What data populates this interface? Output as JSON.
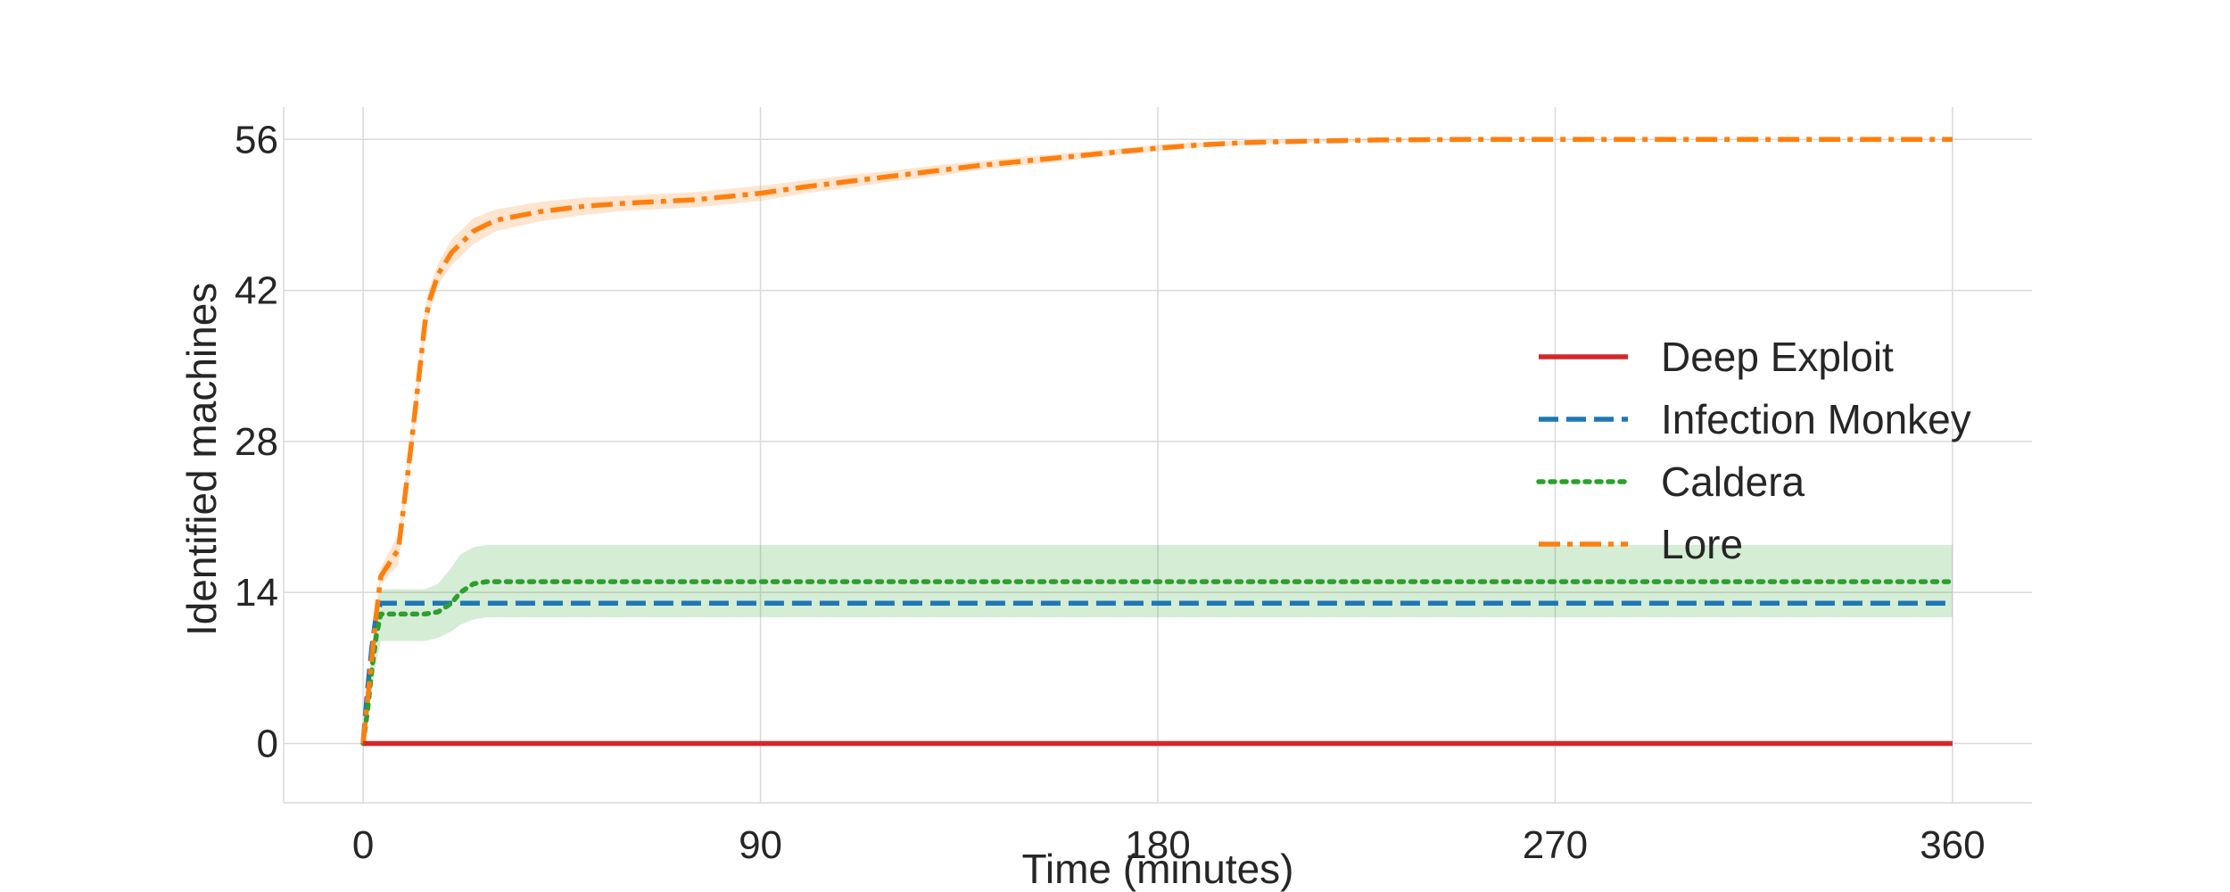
{
  "chart_data": {
    "type": "line",
    "xlabel": "Time (minutes)",
    "ylabel": "Identified machines",
    "xlim": [
      -18,
      378
    ],
    "ylim": [
      -5.5,
      59
    ],
    "xticks": [
      0,
      90,
      180,
      270,
      360
    ],
    "yticks": [
      0,
      14,
      28,
      42,
      56
    ],
    "grid": true,
    "legend_position": "center-right",
    "series": [
      {
        "name": "Deep Exploit",
        "color": "#d62728",
        "style": "solid",
        "x": [
          0,
          360
        ],
        "y": [
          0,
          0
        ]
      },
      {
        "name": "Infection Monkey",
        "color": "#1f77b4",
        "style": "dashed",
        "x": [
          0,
          1,
          2,
          3,
          4,
          360
        ],
        "y": [
          0,
          5,
          9,
          12,
          13,
          13
        ]
      },
      {
        "name": "Caldera",
        "color": "#2ca02c",
        "style": "dotted",
        "x": [
          0,
          1,
          2,
          3,
          4,
          14,
          17,
          20,
          22,
          25,
          28,
          360
        ],
        "y": [
          0,
          3,
          7,
          10,
          12,
          12,
          12.2,
          13,
          14,
          14.8,
          15,
          15
        ],
        "band_lower": [
          0,
          2,
          5,
          7.5,
          9.5,
          9.5,
          9.8,
          10.4,
          11,
          11.5,
          11.7,
          11.7
        ],
        "band_upper": [
          0,
          4,
          9,
          12.5,
          14.3,
          14.3,
          14.8,
          16.3,
          17.5,
          18.2,
          18.4,
          18.4
        ]
      },
      {
        "name": "Lore",
        "color": "#ff7f0e",
        "style": "dashdot",
        "x": [
          0,
          3,
          4,
          8,
          11,
          14,
          15,
          17,
          20,
          25,
          30,
          40,
          50,
          60,
          75,
          90,
          100,
          110,
          120,
          130,
          140,
          150,
          160,
          170,
          180,
          190,
          200,
          215,
          230,
          250,
          270,
          300,
          330,
          360
        ],
        "y": [
          0,
          12,
          15.5,
          18,
          28,
          39,
          41,
          43.5,
          45.5,
          47.5,
          48.5,
          49.3,
          49.8,
          50.1,
          50.4,
          51,
          51.6,
          52.1,
          52.6,
          53.1,
          53.6,
          54,
          54.4,
          54.8,
          55.2,
          55.5,
          55.7,
          55.85,
          55.95,
          56,
          56,
          56,
          56,
          56
        ],
        "band_halfwidth": [
          0,
          0.8,
          0.8,
          1.4,
          1.4,
          1.4,
          1.2,
          1.0,
          1.2,
          1.2,
          1.0,
          0.9,
          0.8,
          0.7,
          0.7,
          0.7,
          0.6,
          0.6,
          0.5,
          0.5,
          0.4,
          0.4,
          0.35,
          0.3,
          0.3,
          0.25,
          0.2,
          0.15,
          0.1,
          0.05,
          0,
          0,
          0,
          0
        ]
      }
    ]
  }
}
